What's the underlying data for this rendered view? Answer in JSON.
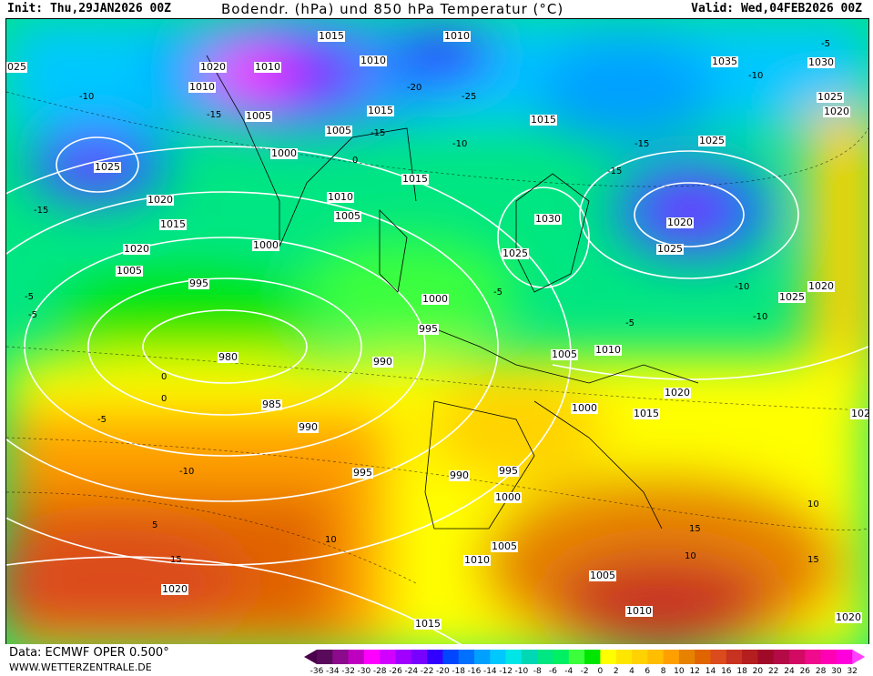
{
  "header": {
    "init": "Init: Thu,29JAN2026 00Z",
    "title": "Bodendr. (hPa) und 850 hPa Temperatur (°C)",
    "valid": "Valid: Wed,04FEB2026 00Z"
  },
  "footer": {
    "source": "Data: ECMWF OPER 0.500°",
    "website": "WWW.WETTERZENTRALE.DE"
  },
  "isobar_labels": [
    "1015",
    "1010",
    "1020",
    "1010",
    "1010",
    "1005",
    "1015",
    "1025",
    "1000",
    "1005",
    "1015",
    "1020",
    "1015",
    "1020",
    "1015",
    "1010",
    "1010",
    "1005",
    "1005",
    "1000",
    "1030",
    "995",
    "1000",
    "1025",
    "995",
    "980",
    "990",
    "1025",
    "1005",
    "1010",
    "1035",
    "1030",
    "1025",
    "1020",
    "1020",
    "1025",
    "1020",
    "1025",
    "1000",
    "1015",
    "1020",
    "995",
    "990",
    "985",
    "990",
    "995",
    "1000",
    "1005",
    "1010",
    "1005",
    "1010",
    "1020",
    "1015",
    "1020",
    "025",
    "102"
  ],
  "temperature_labels": [
    "-10",
    "-15",
    "-20",
    "-25",
    "-15",
    "-15",
    "-10",
    "-15",
    "-10",
    "-5",
    "-5",
    "0",
    "-5",
    "-5",
    "-10",
    "-10",
    "-5",
    "0",
    "5",
    "10",
    "15",
    "10",
    "15",
    "10",
    "15",
    "-10",
    "-15",
    "-5",
    "0"
  ],
  "legend": {
    "ticks": [
      "-36",
      "-34",
      "-32",
      "-30",
      "-28",
      "-26",
      "-24",
      "-22",
      "-20",
      "-18",
      "-16",
      "-14",
      "-12",
      "-10",
      "-8",
      "-6",
      "-4",
      "-2",
      "0",
      "2",
      "4",
      "6",
      "8",
      "10",
      "12",
      "14",
      "16",
      "18",
      "20",
      "22",
      "24",
      "26",
      "28",
      "30",
      "32"
    ],
    "colors": [
      "#5a0a5a",
      "#8c0a8c",
      "#c000c0",
      "#ff00ff",
      "#d200ff",
      "#a000ff",
      "#7800ff",
      "#3200ff",
      "#0046ff",
      "#0070ff",
      "#00a0ff",
      "#00c8ff",
      "#00e6e6",
      "#00d7b4",
      "#00e682",
      "#00f064",
      "#3cff3c",
      "#00e600",
      "#ffff00",
      "#ffe600",
      "#ffd200",
      "#ffbe00",
      "#ffa000",
      "#e68200",
      "#e06400",
      "#dc4b1e",
      "#c83220",
      "#b41e1e",
      "#a00a28",
      "#b40a46",
      "#d20a64",
      "#f00a8c",
      "#ff00b4",
      "#ff00dc"
    ],
    "low_arrow_color": "#4b004b",
    "high_arrow_color": "#ff40ff"
  }
}
